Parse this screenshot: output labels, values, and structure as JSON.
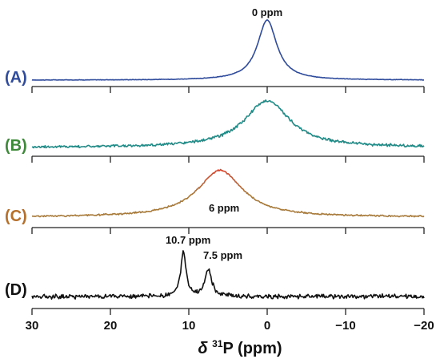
{
  "chart_data": {
    "type": "line",
    "title": "",
    "xlabel_prefix": "δ",
    "xlabel_super": "31",
    "xlabel_rest": "P (ppm)",
    "xlim": [
      30,
      -20
    ],
    "x_reversed": true,
    "x_ticks": [
      30,
      20,
      10,
      0,
      -10,
      -20
    ],
    "x_tick_labels": [
      "30",
      "20",
      "10",
      "0",
      "−10",
      "−20"
    ],
    "series": [
      {
        "label": "(A)",
        "color": "#2f4b9c",
        "label_color": "#2f4b9c",
        "noise": 0.006,
        "baseline": 0.0,
        "peaks": [
          {
            "center": 0.0,
            "height": 1.0,
            "width": 3.0
          }
        ],
        "annotations": [
          {
            "text": "0 ppm",
            "x": 0.0
          }
        ]
      },
      {
        "label": "(B)",
        "color": "#1f8a86",
        "label_color": "#3f8a3a",
        "noise": 0.035,
        "baseline": 0.0,
        "peaks": [
          {
            "center": 0.0,
            "height": 0.78,
            "width": 7.0
          }
        ],
        "annotations": []
      },
      {
        "label": "(C)",
        "color": "#a87a3a",
        "peak_color": "#d9432c",
        "label_color": "#b5702c",
        "noise": 0.02,
        "baseline": 0.0,
        "peaks": [
          {
            "center": 6.0,
            "height": 0.78,
            "width": 7.0
          }
        ],
        "annotations": [
          {
            "text": "6 ppm",
            "x": 5.5
          }
        ]
      },
      {
        "label": "(D)",
        "color": "#111111",
        "label_color": "#111111",
        "noise": 0.06,
        "baseline": 0.0,
        "peaks": [
          {
            "center": 10.7,
            "height": 0.78,
            "width": 0.8
          },
          {
            "center": 7.5,
            "height": 0.48,
            "width": 1.0
          }
        ],
        "annotations": [
          {
            "text": "10.7 ppm",
            "x": 10.7
          },
          {
            "text": "7.5 ppm",
            "x": 7.5
          }
        ]
      }
    ]
  }
}
